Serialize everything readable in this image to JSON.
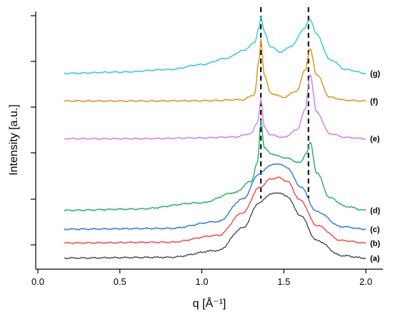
{
  "chart_data": {
    "type": "line",
    "xlabel": "q [Å⁻¹]",
    "ylabel": "Intensity [a.u.]",
    "xlim": [
      0.0,
      2.0
    ],
    "x_ticks": [
      "0.0",
      "0.5",
      "1.0",
      "1.5",
      "2.0"
    ],
    "ylim": [
      0,
      100
    ],
    "y_tick_labels_shown": false,
    "grid": false,
    "legend": "inline labels at right end of each curve",
    "vertical_dashed_lines_q": [
      1.36,
      1.65
    ],
    "series": [
      {
        "name": "(a)",
        "color": "#404040",
        "baseline": 3.0,
        "x": [
          0.16,
          0.8,
          1.1,
          1.25,
          1.35,
          1.42,
          1.47,
          1.52,
          1.6,
          1.7,
          1.85,
          2.0
        ],
        "y": [
          3.0,
          3.3,
          6.0,
          15.0,
          25.0,
          28.5,
          29.0,
          27.5,
          20.0,
          10.0,
          4.0,
          3.0
        ]
      },
      {
        "name": "(b)",
        "color": "#f03a3a",
        "baseline": 9.0,
        "x": [
          0.16,
          0.8,
          1.1,
          1.25,
          1.35,
          1.42,
          1.47,
          1.52,
          1.6,
          1.7,
          1.85,
          2.0
        ],
        "y": [
          9.0,
          9.3,
          12.0,
          21.0,
          31.0,
          34.5,
          35.0,
          33.5,
          26.0,
          16.0,
          10.0,
          9.0
        ]
      },
      {
        "name": "(c)",
        "color": "#1f6fd1",
        "baseline": 14.5,
        "x": [
          0.16,
          0.8,
          1.1,
          1.25,
          1.35,
          1.42,
          1.47,
          1.52,
          1.6,
          1.7,
          1.85,
          2.0
        ],
        "y": [
          14.5,
          14.8,
          17.5,
          26.5,
          36.5,
          40.0,
          40.5,
          39.0,
          31.5,
          21.5,
          15.5,
          14.5
        ]
      },
      {
        "name": "(d)",
        "color": "#1aa265",
        "baseline": 22.0,
        "x": [
          0.16,
          0.6,
          1.0,
          1.2,
          1.3,
          1.34,
          1.36,
          1.38,
          1.42,
          1.5,
          1.6,
          1.64,
          1.66,
          1.7,
          1.78,
          1.88,
          2.0
        ],
        "y": [
          22.0,
          22.5,
          25.0,
          29.0,
          33.5,
          41.0,
          58.0,
          47.0,
          44.5,
          43.0,
          41.0,
          45.0,
          49.0,
          37.0,
          27.0,
          23.5,
          22.0
        ]
      },
      {
        "name": "(e)",
        "color": "#c874e6",
        "baseline": 50.5,
        "x": [
          0.16,
          0.6,
          1.0,
          1.2,
          1.3,
          1.34,
          1.36,
          1.38,
          1.42,
          1.5,
          1.58,
          1.63,
          1.66,
          1.7,
          1.78,
          1.88,
          2.0
        ],
        "y": [
          50.5,
          50.5,
          50.8,
          51.2,
          52.5,
          57.0,
          66.0,
          55.0,
          52.0,
          51.0,
          54.0,
          62.0,
          76.0,
          61.0,
          52.5,
          51.0,
          50.5
        ]
      },
      {
        "name": "(f)",
        "color": "#d48a0a",
        "baseline": 65.5,
        "x": [
          0.16,
          0.6,
          1.0,
          1.25,
          1.32,
          1.35,
          1.36,
          1.38,
          1.42,
          1.5,
          1.58,
          1.63,
          1.66,
          1.7,
          1.78,
          1.88,
          2.0
        ],
        "y": [
          65.5,
          65.5,
          65.6,
          66.0,
          68.0,
          82.0,
          90.0,
          76.0,
          68.5,
          67.0,
          69.5,
          78.0,
          86.0,
          76.0,
          67.0,
          65.8,
          65.5
        ]
      },
      {
        "name": "(g)",
        "color": "#20c6c8",
        "baseline": 76.5,
        "x": [
          0.16,
          0.5,
          0.8,
          1.0,
          1.15,
          1.25,
          1.32,
          1.35,
          1.36,
          1.38,
          1.42,
          1.48,
          1.55,
          1.62,
          1.66,
          1.7,
          1.78,
          1.88,
          2.0
        ],
        "y": [
          76.5,
          77.0,
          78.0,
          80.0,
          82.5,
          85.5,
          88.5,
          95.0,
          99.0,
          93.0,
          87.0,
          85.0,
          87.5,
          94.0,
          98.0,
          92.0,
          82.0,
          78.0,
          76.5
        ]
      }
    ]
  }
}
